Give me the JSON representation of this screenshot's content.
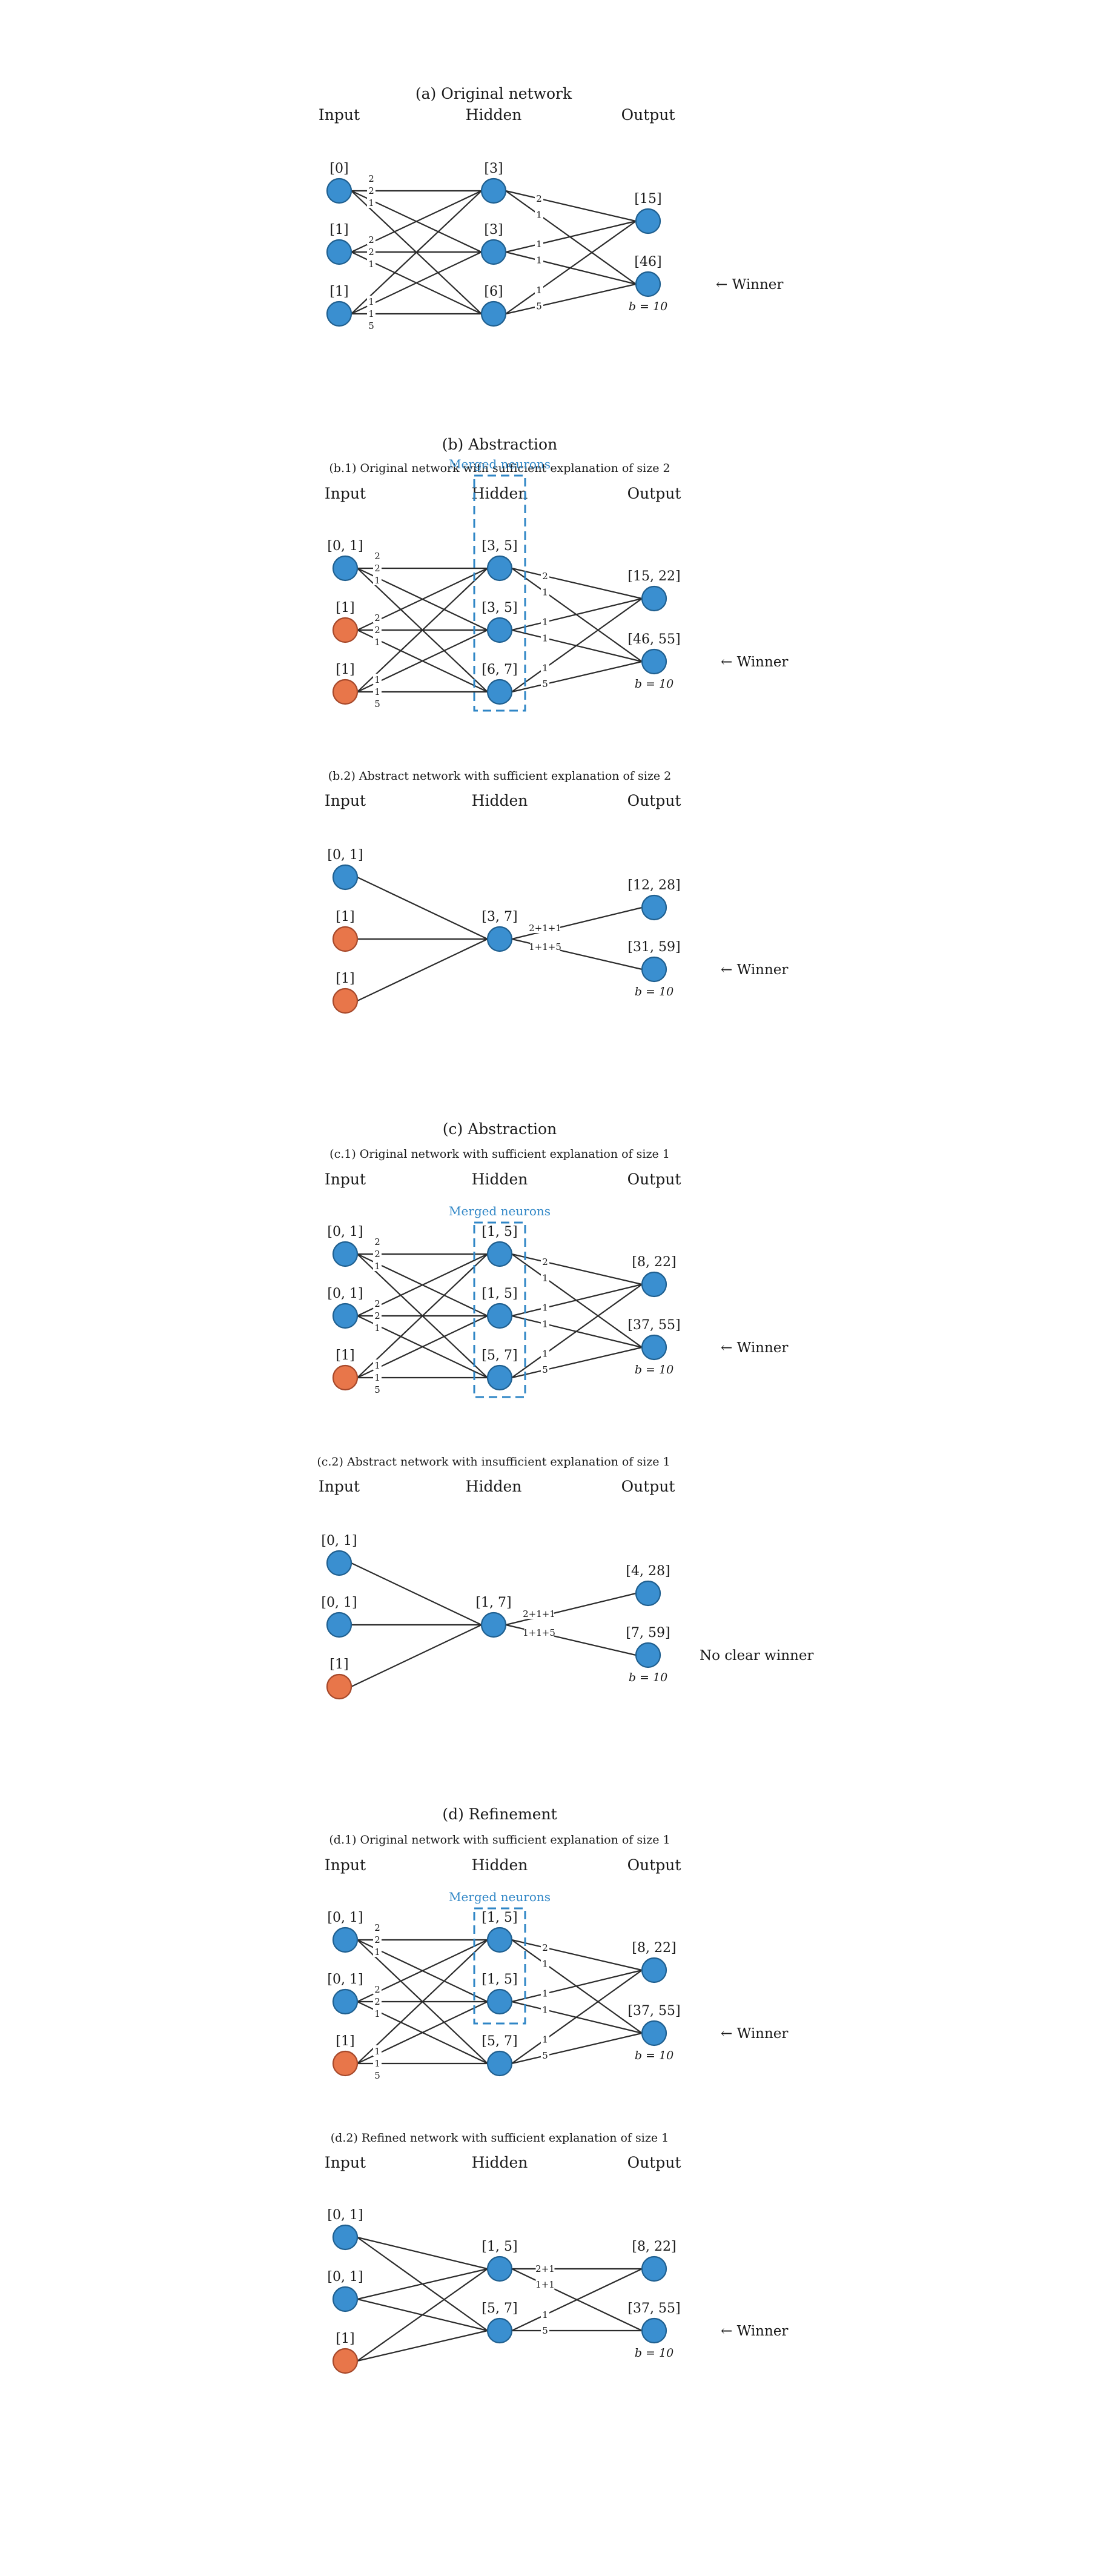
{
  "colors": {
    "active": "#3a8fd0",
    "fixed": "#e8764a",
    "merged": "#2f86c6"
  },
  "headers": {
    "input": "Input",
    "hidden": "Hidden",
    "output": "Output"
  },
  "bias_label": "b = 10",
  "merged_label": "Merged neurons",
  "panels": [
    {
      "title": "(a) Original network",
      "input_bounds": [
        "[0]",
        "[1]",
        "[1]"
      ],
      "input_fixed": [
        false,
        false,
        false
      ],
      "hidden_bounds": [
        "[3]",
        "[3]",
        "[6]"
      ],
      "hidden_merged": [],
      "output_bounds": [
        "[15]",
        "[46]"
      ],
      "w_ih": [
        [
          "2",
          "2",
          "1"
        ],
        [
          "2",
          "2",
          "1"
        ],
        [
          "1",
          "1",
          "5"
        ]
      ],
      "w_ho": [
        [
          "2",
          "1"
        ],
        [
          "1",
          "1"
        ],
        [
          "1",
          "5"
        ]
      ],
      "verdict": "← Winner"
    },
    {
      "title": "(b) Abstraction",
      "subtitle": "(b.1) Original network with sufficient explanation of size 2",
      "input_bounds": [
        "[0, 1]",
        "[1]",
        "[1]"
      ],
      "input_fixed": [
        false,
        true,
        true
      ],
      "hidden_bounds": [
        "[3, 5]",
        "[3, 5]",
        "[6, 7]"
      ],
      "hidden_merged": [
        0,
        1,
        2
      ],
      "output_bounds": [
        "[15, 22]",
        "[46, 55]"
      ],
      "w_ih": [
        [
          "2",
          "2",
          "1"
        ],
        [
          "2",
          "2",
          "1"
        ],
        [
          "1",
          "1",
          "5"
        ]
      ],
      "w_ho": [
        [
          "2",
          "1"
        ],
        [
          "1",
          "1"
        ],
        [
          "1",
          "5"
        ]
      ],
      "verdict": "← Winner"
    },
    {
      "subtitle": "(b.2) Abstract network with sufficient explanation of size 2",
      "input_bounds": [
        "[0, 1]",
        "[1]",
        "[1]"
      ],
      "input_fixed": [
        false,
        true,
        true
      ],
      "hidden_bounds": [
        "[3, 7]"
      ],
      "output_bounds": [
        "[12, 28]",
        "[31, 59]"
      ],
      "w_ho": [
        "2+1+1",
        "1+1+5"
      ],
      "verdict": "← Winner"
    },
    {
      "title": "(c) Abstraction",
      "subtitle": "(c.1) Original network with sufficient explanation of size 1",
      "input_bounds": [
        "[0, 1]",
        "[0, 1]",
        "[1]"
      ],
      "input_fixed": [
        false,
        false,
        true
      ],
      "hidden_bounds": [
        "[1, 5]",
        "[1, 5]",
        "[5, 7]"
      ],
      "hidden_merged": [
        0,
        1,
        2
      ],
      "output_bounds": [
        "[8, 22]",
        "[37, 55]"
      ],
      "w_ih": [
        [
          "2",
          "2",
          "1"
        ],
        [
          "2",
          "2",
          "1"
        ],
        [
          "1",
          "1",
          "5"
        ]
      ],
      "w_ho": [
        [
          "2",
          "1"
        ],
        [
          "1",
          "1"
        ],
        [
          "1",
          "5"
        ]
      ],
      "verdict": "← Winner"
    },
    {
      "subtitle": "(c.2) Abstract network with insufficient explanation of size 1",
      "input_bounds": [
        "[0, 1]",
        "[0, 1]",
        "[1]"
      ],
      "input_fixed": [
        false,
        false,
        true
      ],
      "hidden_bounds": [
        "[1, 7]"
      ],
      "output_bounds": [
        "[4, 28]",
        "[7, 59]"
      ],
      "w_ho": [
        "2+1+1",
        "1+1+5"
      ],
      "verdict": "No clear winner"
    },
    {
      "title": "(d) Refinement",
      "subtitle": "(d.1) Original network with sufficient explanation of size 1",
      "input_bounds": [
        "[0, 1]",
        "[0, 1]",
        "[1]"
      ],
      "input_fixed": [
        false,
        false,
        true
      ],
      "hidden_bounds": [
        "[1, 5]",
        "[1, 5]",
        "[5, 7]"
      ],
      "hidden_merged": [
        0,
        1
      ],
      "output_bounds": [
        "[8, 22]",
        "[37, 55]"
      ],
      "w_ih": [
        [
          "2",
          "2",
          "1"
        ],
        [
          "2",
          "2",
          "1"
        ],
        [
          "1",
          "1",
          "5"
        ]
      ],
      "w_ho": [
        [
          "2",
          "1"
        ],
        [
          "1",
          "1"
        ],
        [
          "1",
          "5"
        ]
      ],
      "verdict": "← Winner"
    },
    {
      "subtitle": "(d.2) Refined network with sufficient explanation of size 1",
      "input_bounds": [
        "[0, 1]",
        "[0, 1]",
        "[1]"
      ],
      "input_fixed": [
        false,
        false,
        true
      ],
      "hidden_bounds": [
        "[1, 5]",
        "[5, 7]"
      ],
      "output_bounds": [
        "[8, 22]",
        "[37, 55]"
      ],
      "w_ho": [
        [
          "2+1",
          "1+1"
        ],
        [
          "1",
          "5"
        ]
      ],
      "verdict": "← Winner"
    }
  ]
}
